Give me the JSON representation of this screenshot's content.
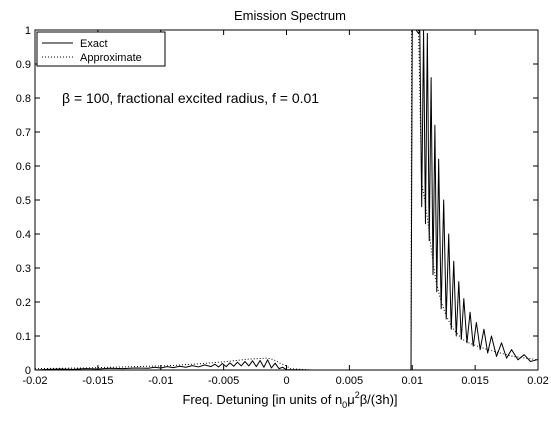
{
  "chart_data": {
    "type": "line",
    "title": "Emission Spectrum",
    "xlabel": "Freq. Detuning [in units of n₀μ²β/(3h)]",
    "xlabel_parts": {
      "prefix": "Freq. Detuning [in units of n",
      "sub0": "0",
      "mu": "μ",
      "sup2": "2",
      "suffix": "β/(3h)]"
    },
    "ylabel": "",
    "xlim": [
      -0.02,
      0.02
    ],
    "ylim": [
      0,
      1
    ],
    "xticks": [
      -0.02,
      -0.015,
      -0.01,
      -0.005,
      0,
      0.005,
      0.01,
      0.015,
      0.02
    ],
    "xtick_labels": [
      "-0.02",
      "-0.015",
      "-0.01",
      "-0.005",
      "0",
      "0.005",
      "0.01",
      "0.015",
      "0.02"
    ],
    "yticks": [
      0,
      0.1,
      0.2,
      0.3,
      0.4,
      0.5,
      0.6,
      0.7,
      0.8,
      0.9,
      1
    ],
    "ytick_labels": [
      "0",
      "0.1",
      "0.2",
      "0.3",
      "0.4",
      "0.5",
      "0.6",
      "0.7",
      "0.8",
      "0.9",
      "1"
    ],
    "grid": false,
    "legend": {
      "position": "top-left",
      "entries": [
        "Exact",
        "Approximate"
      ]
    },
    "annotation": "β = 100, fractional excited radius, f = 0.01",
    "series": [
      {
        "name": "Exact",
        "style": "solid",
        "color": "#000000",
        "points": [
          [
            -0.02,
            0.0
          ],
          [
            -0.019,
            0.002
          ],
          [
            -0.018,
            0.003
          ],
          [
            -0.017,
            0.002
          ],
          [
            -0.016,
            0.004
          ],
          [
            -0.015,
            0.003
          ],
          [
            -0.014,
            0.005
          ],
          [
            -0.013,
            0.004
          ],
          [
            -0.012,
            0.006
          ],
          [
            -0.011,
            0.005
          ],
          [
            -0.0105,
            0.008
          ],
          [
            -0.01,
            0.006
          ],
          [
            -0.0095,
            0.01
          ],
          [
            -0.009,
            0.007
          ],
          [
            -0.0085,
            0.011
          ],
          [
            -0.008,
            0.008
          ],
          [
            -0.0075,
            0.013
          ],
          [
            -0.007,
            0.009
          ],
          [
            -0.0065,
            0.015
          ],
          [
            -0.006,
            0.01
          ],
          [
            -0.0057,
            0.017
          ],
          [
            -0.0054,
            0.009
          ],
          [
            -0.0051,
            0.019
          ],
          [
            -0.0048,
            0.01
          ],
          [
            -0.0045,
            0.021
          ],
          [
            -0.0042,
            0.011
          ],
          [
            -0.0039,
            0.023
          ],
          [
            -0.0036,
            0.012
          ],
          [
            -0.0033,
            0.025
          ],
          [
            -0.003,
            0.012
          ],
          [
            -0.0027,
            0.027
          ],
          [
            -0.0024,
            0.01
          ],
          [
            -0.0021,
            0.028
          ],
          [
            -0.0018,
            0.008
          ],
          [
            -0.0015,
            0.03
          ],
          [
            -0.0012,
            0.006
          ],
          [
            -0.0009,
            0.02
          ],
          [
            -0.0006,
            0.004
          ],
          [
            -0.0003,
            0.008
          ],
          [
            0.0,
            0.001
          ],
          [
            0.002,
            0.0
          ],
          [
            0.005,
            0.0
          ],
          [
            0.0099,
            0.0
          ],
          [
            0.01,
            1.0
          ],
          [
            0.0103,
            1.0
          ],
          [
            0.0105,
            0.99
          ],
          [
            0.0106,
            1.0
          ],
          [
            0.01075,
            0.48
          ],
          [
            0.0109,
            1.0
          ],
          [
            0.01105,
            0.43
          ],
          [
            0.0112,
            0.99
          ],
          [
            0.01135,
            0.38
          ],
          [
            0.0115,
            0.86
          ],
          [
            0.01165,
            0.28
          ],
          [
            0.0118,
            0.72
          ],
          [
            0.01195,
            0.23
          ],
          [
            0.0121,
            0.62
          ],
          [
            0.0123,
            0.18
          ],
          [
            0.0125,
            0.5
          ],
          [
            0.0127,
            0.15
          ],
          [
            0.0129,
            0.4
          ],
          [
            0.0131,
            0.12
          ],
          [
            0.0133,
            0.32
          ],
          [
            0.0135,
            0.1
          ],
          [
            0.0137,
            0.26
          ],
          [
            0.0139,
            0.09
          ],
          [
            0.0141,
            0.21
          ],
          [
            0.01435,
            0.08
          ],
          [
            0.0146,
            0.17
          ],
          [
            0.01485,
            0.07
          ],
          [
            0.0151,
            0.14
          ],
          [
            0.0154,
            0.06
          ],
          [
            0.0157,
            0.12
          ],
          [
            0.016,
            0.05
          ],
          [
            0.0163,
            0.1
          ],
          [
            0.0167,
            0.04
          ],
          [
            0.0171,
            0.08
          ],
          [
            0.0175,
            0.035
          ],
          [
            0.0179,
            0.06
          ],
          [
            0.0184,
            0.03
          ],
          [
            0.0189,
            0.045
          ],
          [
            0.0194,
            0.025
          ],
          [
            0.0199,
            0.03
          ],
          [
            0.02,
            0.03
          ]
        ]
      },
      {
        "name": "Approximate",
        "style": "dotted",
        "color": "#000000",
        "points": [
          [
            -0.02,
            0.004
          ],
          [
            -0.018,
            0.005
          ],
          [
            -0.016,
            0.006
          ],
          [
            -0.014,
            0.008
          ],
          [
            -0.012,
            0.01
          ],
          [
            -0.01,
            0.012
          ],
          [
            -0.009,
            0.013
          ],
          [
            -0.008,
            0.016
          ],
          [
            -0.007,
            0.018
          ],
          [
            -0.006,
            0.021
          ],
          [
            -0.005,
            0.024
          ],
          [
            -0.0045,
            0.026
          ],
          [
            -0.004,
            0.028
          ],
          [
            -0.0035,
            0.03
          ],
          [
            -0.003,
            0.032
          ],
          [
            -0.0025,
            0.033
          ],
          [
            -0.002,
            0.034
          ],
          [
            -0.0015,
            0.035
          ],
          [
            -0.001,
            0.03
          ],
          [
            -0.0005,
            0.02
          ],
          [
            0.0,
            0.012
          ],
          [
            0.0003,
            0.004
          ],
          [
            0.002,
            0.0
          ],
          [
            0.0099,
            0.0
          ],
          [
            0.00995,
            1.0
          ],
          [
            0.0102,
            1.0
          ],
          [
            0.0105,
            1.0
          ],
          [
            0.01075,
            0.55
          ],
          [
            0.011,
            0.5
          ],
          [
            0.0113,
            0.42
          ],
          [
            0.0116,
            0.33
          ],
          [
            0.0119,
            0.26
          ],
          [
            0.0123,
            0.2
          ],
          [
            0.0127,
            0.16
          ],
          [
            0.0131,
            0.13
          ],
          [
            0.0135,
            0.11
          ],
          [
            0.014,
            0.09
          ],
          [
            0.0145,
            0.08
          ],
          [
            0.0152,
            0.07
          ],
          [
            0.016,
            0.06
          ],
          [
            0.017,
            0.05
          ],
          [
            0.018,
            0.04
          ],
          [
            0.019,
            0.035
          ],
          [
            0.02,
            0.03
          ]
        ]
      }
    ]
  }
}
